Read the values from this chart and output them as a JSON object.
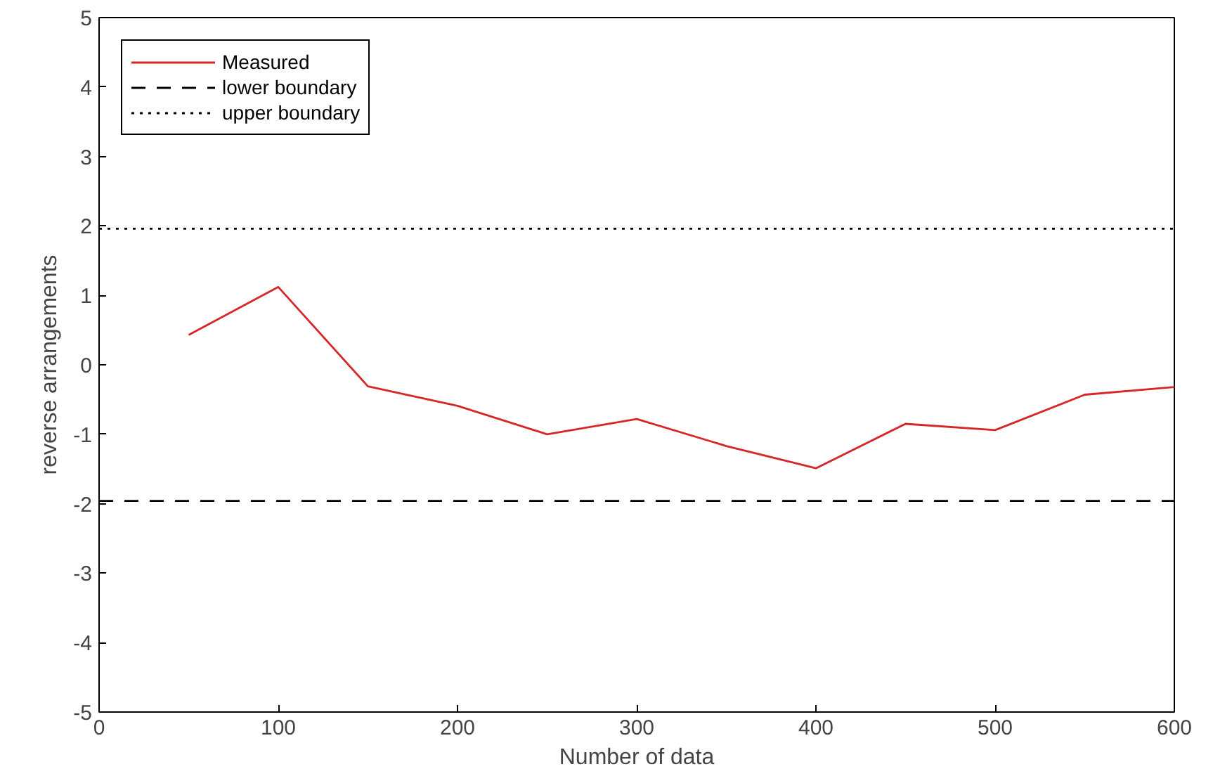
{
  "chart_data": {
    "type": "line",
    "xlabel": "Number of data",
    "ylabel": "reverse arrangements",
    "x": [
      50,
      100,
      150,
      200,
      250,
      300,
      350,
      400,
      450,
      500,
      550,
      600
    ],
    "series": [
      {
        "name": "Measured",
        "color": "#d62728",
        "values": [
          0.43,
          1.12,
          -0.31,
          -0.59,
          -1.0,
          -0.78,
          -1.17,
          -1.49,
          -0.85,
          -0.94,
          -0.43,
          -0.32
        ]
      }
    ],
    "ref_lines": [
      {
        "axis": "y",
        "value": -1.96,
        "label": "lower boundary",
        "color": "#000000",
        "line_style": "dashed"
      },
      {
        "axis": "y",
        "value": 1.96,
        "label": "upper boundary",
        "color": "#000000",
        "line_style": "dotted"
      }
    ],
    "xlim": [
      0,
      600
    ],
    "ylim": [
      -5,
      5
    ],
    "xticks": [
      0,
      100,
      200,
      300,
      400,
      500,
      600
    ],
    "yticks": [
      -5,
      -4,
      -3,
      -2,
      -1,
      0,
      1,
      2,
      3,
      4,
      5
    ],
    "line_style": "solid",
    "legend": "top left"
  }
}
